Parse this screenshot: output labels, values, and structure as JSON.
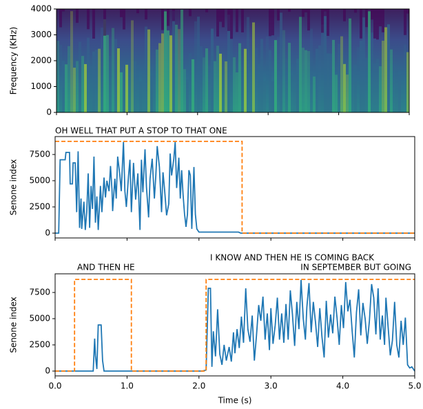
{
  "chart_data": [
    {
      "type": "spectrogram",
      "ylabel": "Frequency (KHz)",
      "xlim": [
        0,
        5
      ],
      "xticks": [
        0,
        1,
        2,
        3,
        4,
        5
      ],
      "ylim": [
        0,
        4000
      ],
      "yticks": [
        0,
        1000,
        2000,
        3000,
        4000
      ]
    },
    {
      "type": "line",
      "title": "OH WELL THAT PUT A STOP TO THAT ONE",
      "ylabel": "Senone index",
      "xlim": [
        0,
        5
      ],
      "xticks": [
        0,
        1,
        2,
        3,
        4,
        5
      ],
      "ylim": [
        -460,
        9210
      ],
      "yticks": [
        0,
        2500,
        5000,
        7500
      ],
      "series": [
        {
          "color": "#1f77b4",
          "dashed": false,
          "x": [
            0,
            0.05,
            0.07,
            0.14,
            0.15,
            0.2,
            0.21,
            0.24,
            0.25,
            0.28,
            0.3,
            0.32,
            0.34,
            0.36,
            0.37,
            0.4,
            0.42,
            0.44,
            0.46,
            0.48,
            0.5,
            0.52,
            0.54,
            0.56,
            0.58,
            0.6,
            0.63,
            0.65,
            0.68,
            0.7,
            0.72,
            0.75,
            0.77,
            0.79,
            0.8,
            0.83,
            0.85,
            0.87,
            0.9,
            0.92,
            0.95,
            0.97,
            0.99,
            1.02,
            1.04,
            1.06,
            1.09,
            1.12,
            1.15,
            1.18,
            1.2,
            1.22,
            1.25,
            1.27,
            1.3,
            1.32,
            1.35,
            1.38,
            1.4,
            1.42,
            1.45,
            1.48,
            1.5,
            1.52,
            1.55,
            1.58,
            1.6,
            1.62,
            1.65,
            1.67,
            1.69,
            1.72,
            1.74,
            1.76,
            1.78,
            1.8,
            1.82,
            1.84,
            1.86,
            1.88,
            1.9,
            1.93,
            1.95,
            1.97,
            2.0,
            2.3,
            2.55,
            2.58,
            5.0
          ],
          "values": [
            0,
            0,
            7000,
            7000,
            7700,
            7700,
            4700,
            4700,
            6700,
            6700,
            2000,
            7800,
            500,
            3300,
            400,
            3000,
            300,
            2000,
            5700,
            500,
            4500,
            2300,
            7300,
            1000,
            3500,
            300,
            4500,
            2000,
            5300,
            3400,
            5000,
            4000,
            6400,
            4200,
            2100,
            5200,
            3300,
            7300,
            5500,
            4000,
            8700,
            4000,
            2500,
            5400,
            7000,
            2000,
            6700,
            3200,
            5700,
            300,
            7000,
            3900,
            8000,
            4400,
            1500,
            5200,
            7100,
            3300,
            5500,
            8300,
            6300,
            2000,
            5800,
            4300,
            1700,
            2800,
            7600,
            5500,
            7100,
            8700,
            4300,
            7200,
            3300,
            6000,
            3600,
            1800,
            600,
            1800,
            6000,
            5500,
            400,
            6300,
            1800,
            400,
            100,
            100,
            100,
            0,
            0
          ]
        },
        {
          "color": "#ff7f0e",
          "dashed": true,
          "x": [
            0,
            2.6,
            2.6,
            5
          ],
          "values": [
            8750,
            8750,
            0,
            0
          ]
        }
      ]
    },
    {
      "type": "line",
      "annotations": [
        "AND THEN HE",
        "I KNOW AND THEN HE IS COMING BACK",
        "IN SEPTEMBER BUT GOING"
      ],
      "ylabel": "Senone index",
      "xlabel": "Time (s)",
      "xlim": [
        0,
        5
      ],
      "xticks": [
        {
          "value": 0,
          "label": "0.0"
        },
        {
          "value": 1,
          "label": "1.0"
        },
        {
          "value": 2,
          "label": "2.0"
        },
        {
          "value": 3,
          "label": "3.0"
        },
        {
          "value": 4,
          "label": "4.0"
        },
        {
          "value": 5,
          "label": "5.0"
        }
      ],
      "ylim": [
        -460,
        9280
      ],
      "yticks": [
        0,
        2500,
        5000,
        7500
      ],
      "series": [
        {
          "color": "#1f77b4",
          "dashed": false,
          "x": [
            0,
            0.53,
            0.55,
            0.56,
            0.58,
            0.6,
            0.64,
            0.66,
            0.68,
            2.05,
            2.1,
            2.13,
            2.16,
            2.18,
            2.2,
            2.23,
            2.26,
            2.29,
            2.32,
            2.35,
            2.38,
            2.42,
            2.45,
            2.48,
            2.5,
            2.53,
            2.56,
            2.59,
            2.62,
            2.65,
            2.68,
            2.71,
            2.74,
            2.77,
            2.8,
            2.83,
            2.86,
            2.89,
            2.92,
            2.95,
            2.98,
            3.0,
            3.03,
            3.06,
            3.09,
            3.12,
            3.15,
            3.18,
            3.21,
            3.24,
            3.27,
            3.3,
            3.33,
            3.36,
            3.39,
            3.42,
            3.45,
            3.48,
            3.5,
            3.53,
            3.56,
            3.59,
            3.62,
            3.65,
            3.68,
            3.71,
            3.74,
            3.77,
            3.8,
            3.83,
            3.86,
            3.89,
            3.92,
            3.95,
            3.98,
            4.01,
            4.04,
            4.07,
            4.1,
            4.13,
            4.16,
            4.19,
            4.22,
            4.25,
            4.28,
            4.31,
            4.34,
            4.37,
            4.4,
            4.43,
            4.46,
            4.49,
            4.52,
            4.55,
            4.58,
            4.6,
            4.63,
            4.66,
            4.69,
            4.72,
            4.75,
            4.78,
            4.81,
            4.84,
            4.87,
            4.9,
            4.93,
            4.96,
            5.0
          ],
          "values": [
            0,
            0,
            3100,
            1500,
            200,
            4400,
            4400,
            1000,
            0,
            0,
            100,
            7900,
            7900,
            400,
            3800,
            1400,
            5900,
            1600,
            600,
            2500,
            1000,
            2300,
            900,
            3700,
            1700,
            4000,
            2200,
            5200,
            2700,
            7900,
            4000,
            2800,
            5300,
            1000,
            3400,
            6300,
            4800,
            7100,
            3000,
            5500,
            2000,
            6000,
            2600,
            4400,
            7000,
            3000,
            5500,
            2700,
            6400,
            3000,
            7700,
            5400,
            2400,
            6600,
            4000,
            8700,
            5000,
            3000,
            6100,
            8400,
            3700,
            6600,
            4700,
            2300,
            6000,
            3300,
            1300,
            6700,
            3200,
            5400,
            3600,
            7100,
            5100,
            2500,
            6300,
            4100,
            8500,
            5700,
            6800,
            3800,
            1300,
            5600,
            7800,
            3400,
            6500,
            5000,
            2600,
            4800,
            8300,
            7000,
            3500,
            7900,
            3000,
            5300,
            2500,
            7000,
            4200,
            1500,
            2900,
            6600,
            2500,
            1300,
            4800,
            2500,
            5100,
            600,
            300,
            400,
            0
          ]
        },
        {
          "color": "#ff7f0e",
          "dashed": true,
          "x": [
            0,
            0.27,
            0.27,
            1.06,
            1.06,
            2.1,
            2.1,
            5
          ],
          "values": [
            0,
            0,
            8750,
            8750,
            0,
            0,
            8750,
            8750
          ]
        }
      ]
    }
  ]
}
